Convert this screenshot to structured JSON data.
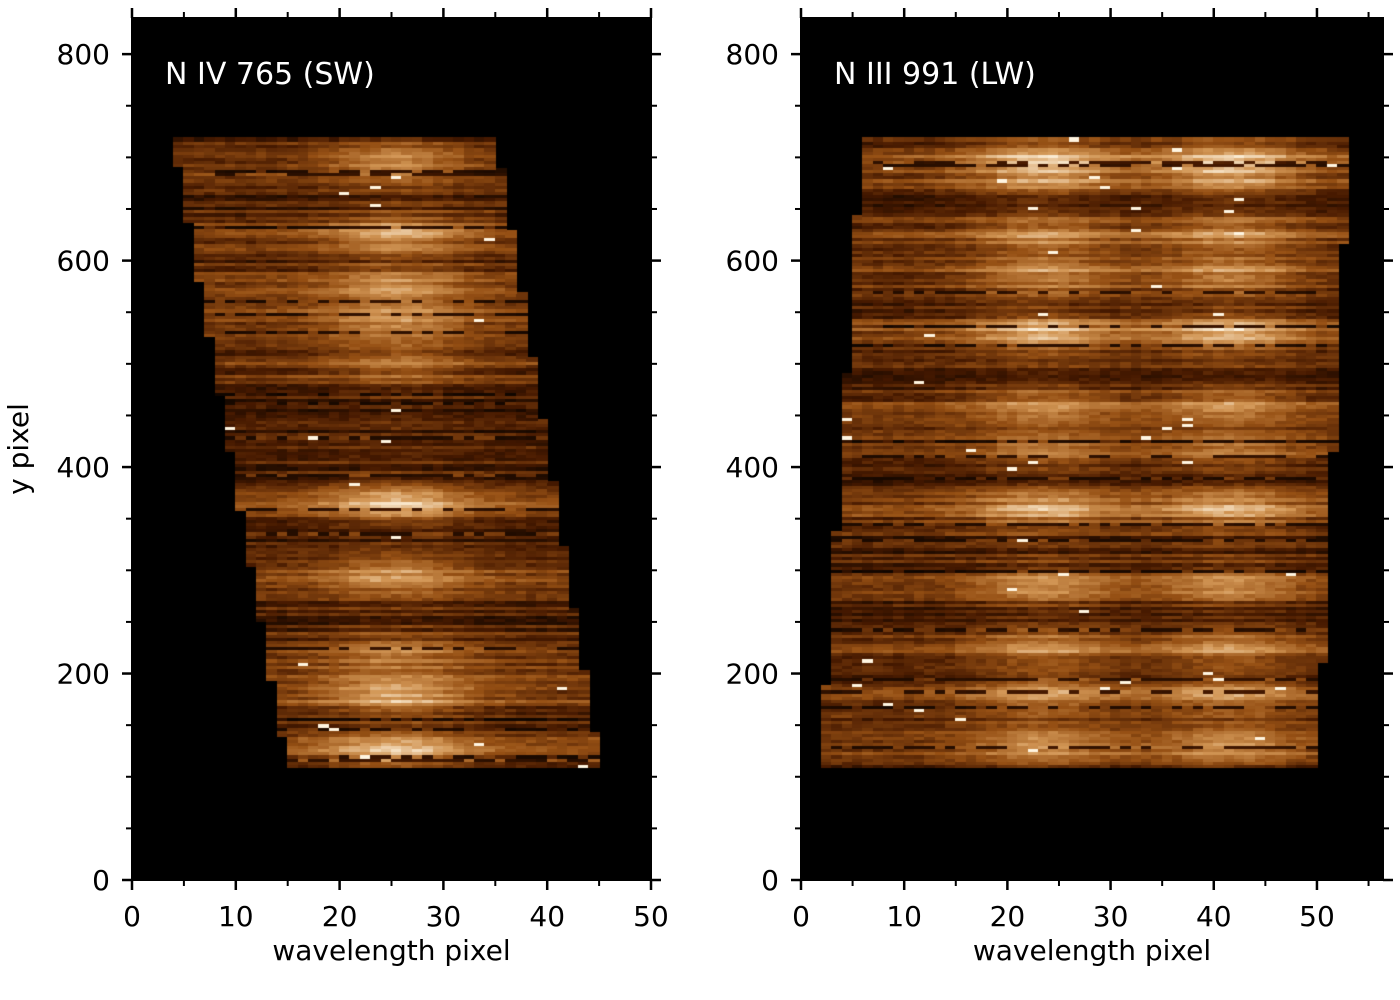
{
  "chart_data": [
    {
      "type": "heatmap",
      "title": "N IV 765 (SW)",
      "xlabel": "wavelength pixel",
      "ylabel": "y pixel",
      "xlim": [
        0,
        50
      ],
      "ylim": [
        0,
        835
      ],
      "xticks": [
        0,
        10,
        20,
        30,
        40,
        50
      ],
      "xtick_labels": [
        "0",
        "10",
        "20",
        "30",
        "40",
        "50"
      ],
      "xminor": [
        5,
        15,
        25,
        35,
        45
      ],
      "yticks": [
        0,
        200,
        400,
        600,
        800
      ],
      "ytick_labels": [
        "0",
        "200",
        "400",
        "600",
        "800"
      ],
      "yminor": [
        50,
        100,
        150,
        250,
        300,
        350,
        450,
        500,
        550,
        650,
        700,
        750
      ],
      "colormap": "afmhot-like brown",
      "background": "#000000",
      "data_region": {
        "y_range": [
          110,
          718
        ],
        "left_edge": [
          [
            110,
            15
          ],
          [
            718,
            4
          ]
        ],
        "right_edge": [
          [
            110,
            45
          ],
          [
            718,
            35
          ]
        ]
      },
      "line_center_x": 25,
      "bright_bands_y": [
        125,
        180,
        220,
        295,
        365,
        500,
        540,
        575,
        625,
        695
      ],
      "band_strength": [
        0.95,
        1.0,
        0.6,
        0.75,
        0.95,
        0.6,
        0.75,
        0.7,
        0.95,
        0.85
      ],
      "seed": 7
    },
    {
      "type": "heatmap",
      "title": "N III 991 (LW)",
      "xlabel": "wavelength pixel",
      "ylabel": "",
      "xlim": [
        0,
        56.4
      ],
      "ylim": [
        0,
        835
      ],
      "xticks": [
        0,
        10,
        20,
        30,
        40,
        50
      ],
      "xtick_labels": [
        "0",
        "10",
        "20",
        "30",
        "40",
        "50"
      ],
      "xminor": [
        5,
        15,
        25,
        35,
        45,
        55
      ],
      "yticks": [
        0,
        200,
        400,
        600,
        800
      ],
      "ytick_labels": [
        "0",
        "200",
        "400",
        "600",
        "800"
      ],
      "yminor": [
        50,
        100,
        150,
        250,
        300,
        350,
        450,
        500,
        550,
        650,
        700,
        750
      ],
      "colormap": "afmhot-like brown",
      "background": "#000000",
      "data_region": {
        "y_range": [
          110,
          718
        ],
        "left_edge": [
          [
            110,
            2
          ],
          [
            718,
            6
          ]
        ],
        "right_edge": [
          [
            110,
            50
          ],
          [
            718,
            53
          ]
        ]
      },
      "line_centers_x": [
        23,
        41
      ],
      "bright_bands_y": [
        130,
        180,
        225,
        285,
        360,
        415,
        460,
        530,
        585,
        625,
        680,
        700
      ],
      "band_strength": [
        0.8,
        0.75,
        0.7,
        0.75,
        0.9,
        0.55,
        0.7,
        1.0,
        0.8,
        0.75,
        0.7,
        0.8
      ],
      "seed": 13
    }
  ]
}
